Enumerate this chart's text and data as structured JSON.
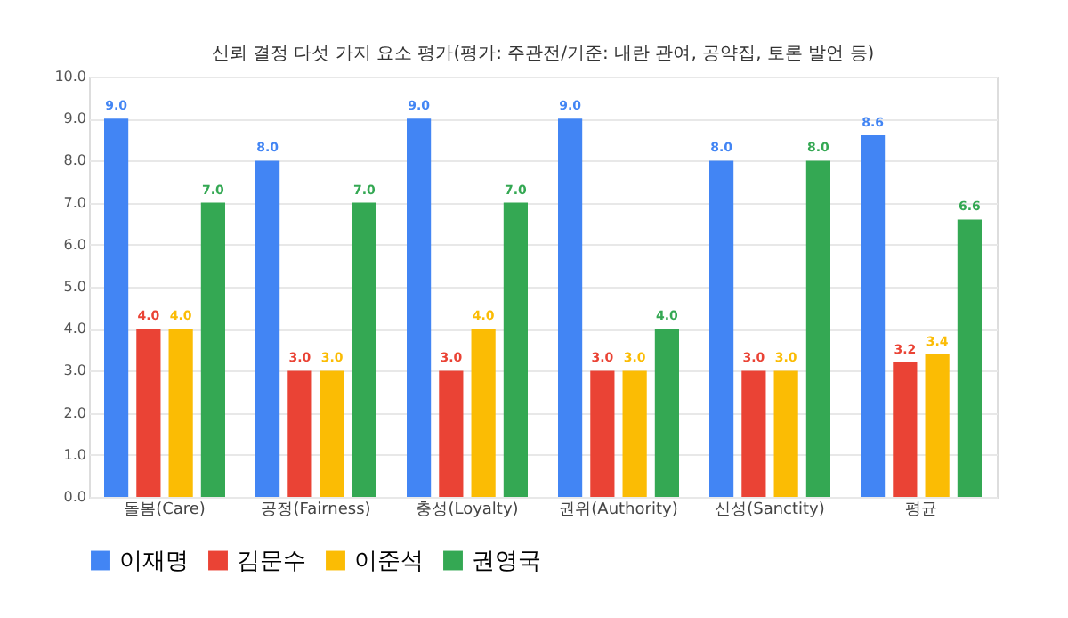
{
  "chart_data": {
    "type": "bar",
    "title": "신뢰 결정 다섯 가지 요소 평가(평가: 주관전/기준: 내란 관여, 공약집, 토론 발언 등)",
    "categories": [
      "돌봄(Care)",
      "공정(Fairness)",
      "충성(Loyalty)",
      "권위(Authority)",
      "신성(Sanctity)",
      "평균"
    ],
    "series": [
      {
        "name": "이재명",
        "color": "#4285f4",
        "values": [
          9.0,
          8.0,
          9.0,
          9.0,
          8.0,
          8.6
        ],
        "value_labels": [
          "9.0",
          "8.0",
          "9.0",
          "9.0",
          "8.0",
          "8.6"
        ]
      },
      {
        "name": "김문수",
        "color": "#ea4335",
        "values": [
          4.0,
          3.0,
          3.0,
          3.0,
          3.0,
          3.2
        ],
        "value_labels": [
          "4.0",
          "3.0",
          "3.0",
          "3.0",
          "3.0",
          "3.2"
        ]
      },
      {
        "name": "이준석",
        "color": "#fbbc04",
        "values": [
          4.0,
          3.0,
          4.0,
          3.0,
          3.0,
          3.4
        ],
        "value_labels": [
          "4.0",
          "3.0",
          "4.0",
          "3.0",
          "3.0",
          "3.4"
        ]
      },
      {
        "name": "권영국",
        "color": "#34a853",
        "values": [
          7.0,
          7.0,
          7.0,
          4.0,
          8.0,
          6.6
        ],
        "value_labels": [
          "7.0",
          "7.0",
          "7.0",
          "4.0",
          "8.0",
          "6.6"
        ]
      }
    ],
    "ylim": [
      0,
      10
    ],
    "yticks": [
      {
        "value": 0,
        "label": "0.0"
      },
      {
        "value": 1,
        "label": "1.0"
      },
      {
        "value": 2,
        "label": "2.0"
      },
      {
        "value": 3,
        "label": "3.0"
      },
      {
        "value": 4,
        "label": "4.0"
      },
      {
        "value": 5,
        "label": "5.0"
      },
      {
        "value": 6,
        "label": "6.0"
      },
      {
        "value": 7,
        "label": "7.0"
      },
      {
        "value": 8,
        "label": "8.0"
      },
      {
        "value": 9,
        "label": "9.0"
      },
      {
        "value": 10,
        "label": "10.0"
      }
    ],
    "grid": "y",
    "legend": "bottom"
  }
}
